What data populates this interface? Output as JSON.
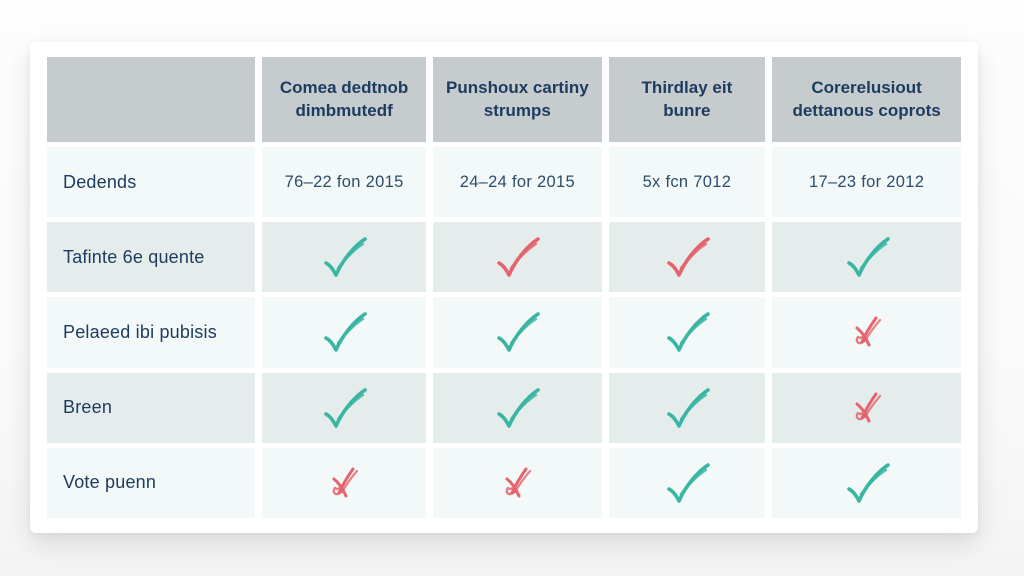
{
  "chart_data": {
    "type": "table",
    "title": "",
    "columns": [
      "",
      "Comea dedtnob dimbmutedf",
      "Punshoux cartiny strumps",
      "Thirdlay eit bunre",
      "Corerelusiout dettanous coprots"
    ],
    "rows": [
      {
        "label": "Dedends",
        "cells": [
          {
            "type": "text",
            "value": "76–22 fon 2015"
          },
          {
            "type": "text",
            "value": "24–24 for 2015"
          },
          {
            "type": "text",
            "value": "5x fcn 7012"
          },
          {
            "type": "text",
            "value": "17–23 for 2012"
          }
        ]
      },
      {
        "label": "Tafinte 6e quente",
        "cells": [
          {
            "type": "mark",
            "mark": "check",
            "color": "teal"
          },
          {
            "type": "mark",
            "mark": "check",
            "color": "red"
          },
          {
            "type": "mark",
            "mark": "check",
            "color": "red"
          },
          {
            "type": "mark",
            "mark": "check",
            "color": "teal"
          }
        ]
      },
      {
        "label": "Pelaeed ibi pubisis",
        "cells": [
          {
            "type": "mark",
            "mark": "check",
            "color": "teal"
          },
          {
            "type": "mark",
            "mark": "check",
            "color": "teal"
          },
          {
            "type": "mark",
            "mark": "check",
            "color": "teal"
          },
          {
            "type": "mark",
            "mark": "cross",
            "color": "red"
          }
        ]
      },
      {
        "label": "Breen",
        "cells": [
          {
            "type": "mark",
            "mark": "check",
            "color": "teal"
          },
          {
            "type": "mark",
            "mark": "check",
            "color": "teal"
          },
          {
            "type": "mark",
            "mark": "check",
            "color": "teal"
          },
          {
            "type": "mark",
            "mark": "cross",
            "color": "red"
          }
        ]
      },
      {
        "label": "Vote puenn",
        "cells": [
          {
            "type": "mark",
            "mark": "cross",
            "color": "red"
          },
          {
            "type": "mark",
            "mark": "cross",
            "color": "red"
          },
          {
            "type": "mark",
            "mark": "check",
            "color": "teal"
          },
          {
            "type": "mark",
            "mark": "check",
            "color": "teal"
          }
        ]
      }
    ],
    "icon_legend": {
      "check": "check-icon",
      "cross": "cross-icon"
    }
  },
  "colors": {
    "teal": "#3ab5a3",
    "red": "#e5636c",
    "header_bg": "#c6cbcd",
    "row_light": "#f3f8f8",
    "row_dark": "#e4edec",
    "header_text": "#1d3c60",
    "body_text": "#2c4d6b",
    "card_bg": "#ffffff",
    "page_bg": "#fafafa"
  }
}
